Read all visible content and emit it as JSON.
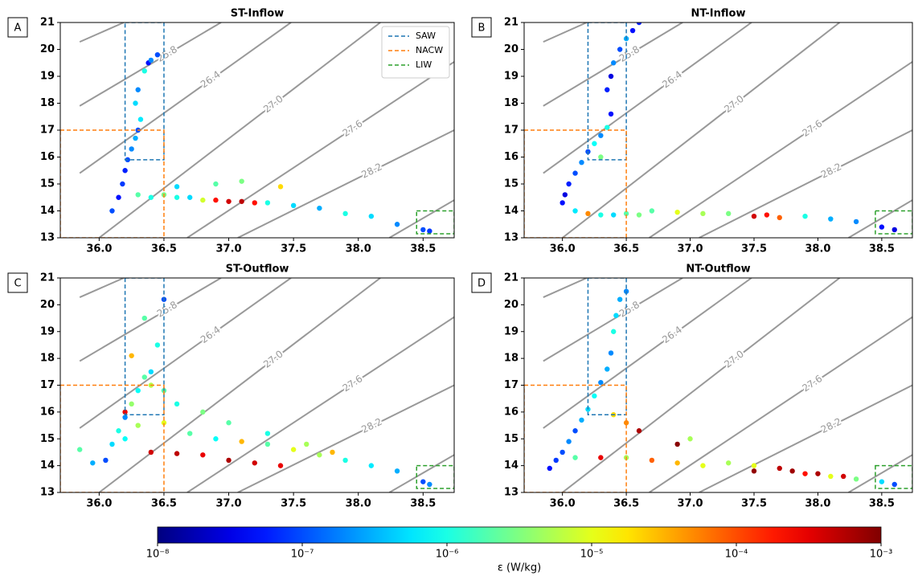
{
  "chart_data": [
    {
      "type": "scatter",
      "title": "ST-Inflow",
      "label": "A",
      "legend": "upper right",
      "xlim": [
        35.7,
        38.74
      ],
      "ylim": [
        13,
        21
      ],
      "xticks": [
        {
          "value": 36,
          "label": "36.0"
        },
        {
          "value": 36.5,
          "label": "36.5"
        },
        {
          "value": 37,
          "label": "37.0"
        },
        {
          "value": 37.5,
          "label": "37.5"
        },
        {
          "value": 38,
          "label": "38.0"
        },
        {
          "value": 38.5,
          "label": "38.5"
        }
      ],
      "yticks": [
        13,
        14,
        15,
        16,
        17,
        18,
        19,
        20,
        21
      ],
      "x": [
        36.1,
        36.15,
        36.18,
        36.2,
        36.22,
        36.25,
        36.28,
        36.3,
        36.32,
        36.28,
        36.3,
        36.35,
        36.38,
        36.4,
        36.45,
        36.3,
        36.4,
        36.5,
        36.6,
        36.7,
        36.8,
        36.9,
        37.0,
        37.1,
        37.2,
        37.3,
        37.5,
        37.7,
        37.9,
        38.1,
        38.3,
        38.5,
        38.55,
        36.9,
        37.1,
        37.4,
        36.6
      ],
      "y": [
        14.0,
        14.5,
        15.0,
        15.5,
        15.9,
        16.3,
        16.7,
        17.0,
        17.4,
        18.0,
        18.5,
        19.2,
        19.5,
        19.6,
        19.8,
        14.6,
        14.5,
        14.6,
        14.5,
        14.5,
        14.4,
        14.4,
        14.35,
        14.35,
        14.3,
        14.3,
        14.2,
        14.1,
        13.9,
        13.8,
        13.5,
        13.3,
        13.25,
        15.0,
        15.1,
        14.9,
        14.9
      ],
      "epsilon": [
        1e-07,
        5e-08,
        8e-08,
        6e-08,
        1e-07,
        2e-07,
        3e-07,
        1e-07,
        6e-07,
        5e-07,
        2e-07,
        1e-06,
        5e-08,
        2e-07,
        1e-07,
        2e-06,
        1e-06,
        3e-06,
        1e-06,
        5e-07,
        8e-06,
        0.0002,
        0.0004,
        0.0005,
        0.0002,
        1e-06,
        5e-07,
        3e-07,
        1e-06,
        5e-07,
        2e-07,
        1e-07,
        8e-08,
        2e-06,
        3e-06,
        2e-05,
        5e-07
      ]
    },
    {
      "type": "scatter",
      "title": "NT-Inflow",
      "label": "B",
      "xlim": [
        35.7,
        38.74
      ],
      "ylim": [
        13,
        21
      ],
      "xticks": [
        {
          "value": 36,
          "label": "36.0"
        },
        {
          "value": 36.5,
          "label": "36.5"
        },
        {
          "value": 37,
          "label": "37.0"
        },
        {
          "value": 37.5,
          "label": "37.5"
        },
        {
          "value": 38,
          "label": "38.0"
        },
        {
          "value": 38.5,
          "label": "38.5"
        }
      ],
      "yticks": [
        13,
        14,
        15,
        16,
        17,
        18,
        19,
        20,
        21
      ],
      "x": [
        36.0,
        36.02,
        36.05,
        36.1,
        36.15,
        36.2,
        36.25,
        36.3,
        36.35,
        36.38,
        36.35,
        36.38,
        36.4,
        36.45,
        36.5,
        36.55,
        36.6,
        36.1,
        36.2,
        36.3,
        36.4,
        36.5,
        36.6,
        36.7,
        36.9,
        37.1,
        37.3,
        37.5,
        37.6,
        37.7,
        37.9,
        38.1,
        38.3,
        38.5,
        38.6,
        36.3
      ],
      "y": [
        14.3,
        14.6,
        15.0,
        15.4,
        15.8,
        16.2,
        16.5,
        16.8,
        17.1,
        17.6,
        18.5,
        19.0,
        19.5,
        20.0,
        20.4,
        20.7,
        21.0,
        14.0,
        13.9,
        13.85,
        13.85,
        13.9,
        13.85,
        14.0,
        13.95,
        13.9,
        13.9,
        13.8,
        13.85,
        13.75,
        13.8,
        13.7,
        13.6,
        13.4,
        13.3,
        16.0
      ],
      "epsilon": [
        5e-08,
        3e-08,
        6e-08,
        1e-07,
        2e-07,
        1e-07,
        8e-07,
        2e-07,
        1e-06,
        5e-08,
        6e-08,
        3e-08,
        2e-07,
        1e-07,
        3e-07,
        5e-08,
        6e-08,
        6e-07,
        5e-05,
        1e-06,
        5e-07,
        2e-06,
        3e-06,
        2e-06,
        1e-05,
        5e-06,
        3e-06,
        0.0004,
        0.0002,
        8e-05,
        1e-06,
        3e-07,
        2e-07,
        5e-08,
        3e-08,
        3e-06
      ]
    },
    {
      "type": "scatter",
      "title": "ST-Outflow",
      "label": "C",
      "xlim": [
        35.7,
        38.74
      ],
      "ylim": [
        13,
        21
      ],
      "xticks": [
        {
          "value": 36,
          "label": "36.0"
        },
        {
          "value": 36.5,
          "label": "36.5"
        },
        {
          "value": 37,
          "label": "37.0"
        },
        {
          "value": 37.5,
          "label": "37.5"
        },
        {
          "value": 38,
          "label": "38.0"
        },
        {
          "value": 38.5,
          "label": "38.5"
        }
      ],
      "yticks": [
        13,
        14,
        15,
        16,
        17,
        18,
        19,
        20,
        21
      ],
      "x": [
        35.85,
        35.95,
        36.05,
        36.1,
        36.15,
        36.2,
        36.25,
        36.3,
        36.35,
        36.4,
        36.45,
        36.5,
        36.35,
        36.4,
        36.2,
        36.25,
        36.3,
        36.5,
        36.7,
        36.9,
        37.1,
        37.3,
        37.5,
        37.7,
        37.9,
        38.1,
        38.3,
        38.5,
        38.55,
        36.4,
        36.6,
        36.8,
        37.0,
        37.2,
        37.4,
        36.6,
        36.8,
        37.0,
        37.3,
        37.6,
        37.8,
        36.2,
        36.5
      ],
      "y": [
        14.6,
        14.1,
        14.2,
        14.8,
        15.3,
        15.8,
        16.3,
        16.8,
        17.3,
        17.5,
        18.5,
        20.2,
        19.5,
        17.0,
        15.0,
        18.1,
        15.5,
        15.6,
        15.2,
        15.0,
        14.9,
        14.8,
        14.6,
        14.4,
        14.2,
        14.0,
        13.8,
        13.4,
        13.3,
        14.5,
        14.45,
        14.4,
        14.2,
        14.1,
        14.0,
        16.3,
        16.0,
        15.6,
        15.2,
        14.8,
        14.5,
        16.0,
        16.8
      ],
      "epsilon": [
        2e-06,
        3e-07,
        1e-07,
        5e-07,
        1e-06,
        2e-07,
        4e-06,
        8e-07,
        2e-06,
        5e-07,
        1e-06,
        1e-07,
        2e-06,
        6e-06,
        8e-07,
        3e-05,
        5e-06,
        1e-05,
        2e-06,
        8e-07,
        3e-05,
        2e-06,
        1e-05,
        5e-06,
        1e-06,
        6e-07,
        3e-07,
        1e-07,
        2e-07,
        0.0004,
        0.0005,
        0.0003,
        0.0006,
        0.0004,
        0.0003,
        1e-06,
        3e-06,
        2e-06,
        1e-06,
        5e-06,
        3e-05,
        0.0003,
        2e-06
      ]
    },
    {
      "type": "scatter",
      "title": "NT-Outflow",
      "label": "D",
      "xlim": [
        35.7,
        38.74
      ],
      "ylim": [
        13,
        21
      ],
      "xticks": [
        {
          "value": 36,
          "label": "36.0"
        },
        {
          "value": 36.5,
          "label": "36.5"
        },
        {
          "value": 37,
          "label": "37.0"
        },
        {
          "value": 37.5,
          "label": "37.5"
        },
        {
          "value": 38,
          "label": "38.0"
        },
        {
          "value": 38.5,
          "label": "38.5"
        }
      ],
      "yticks": [
        13,
        14,
        15,
        16,
        17,
        18,
        19,
        20,
        21
      ],
      "x": [
        35.9,
        35.95,
        36.0,
        36.05,
        36.1,
        36.15,
        36.2,
        36.25,
        36.3,
        36.35,
        36.38,
        36.4,
        36.42,
        36.45,
        36.5,
        36.1,
        36.3,
        36.5,
        36.7,
        36.9,
        37.1,
        37.3,
        37.5,
        37.7,
        37.9,
        38.1,
        38.3,
        38.5,
        38.6,
        36.5,
        36.6,
        36.4,
        36.9,
        37.0,
        37.5,
        37.8,
        38.0,
        38.2
      ],
      "y": [
        13.9,
        14.2,
        14.5,
        14.9,
        15.3,
        15.7,
        16.1,
        16.6,
        17.1,
        17.6,
        18.2,
        19.0,
        19.6,
        20.2,
        20.5,
        14.3,
        14.3,
        14.3,
        14.2,
        14.1,
        14.0,
        14.1,
        14.0,
        13.9,
        13.7,
        13.6,
        13.5,
        13.4,
        13.3,
        15.6,
        15.3,
        15.9,
        14.8,
        15.0,
        13.8,
        13.8,
        13.7,
        13.6
      ],
      "epsilon": [
        5e-08,
        8e-08,
        1e-07,
        2e-07,
        1e-07,
        3e-07,
        5e-07,
        8e-07,
        2e-07,
        3e-07,
        2e-07,
        1e-06,
        5e-07,
        3e-07,
        2e-07,
        2e-06,
        0.0003,
        5e-06,
        8e-05,
        3e-05,
        1e-05,
        5e-06,
        1e-05,
        0.0005,
        0.0002,
        1e-05,
        3e-06,
        5e-07,
        1e-07,
        5e-05,
        0.0006,
        2e-05,
        0.0009,
        5e-06,
        0.0008,
        0.0007,
        0.0006,
        0.0004
      ]
    }
  ],
  "isopycnals": [
    {
      "x": [
        35.85,
        36.19
      ],
      "y": [
        20.28,
        21
      ]
    },
    {
      "label": "25.8",
      "x": [
        35.85,
        36.94
      ],
      "y": [
        17.9,
        21
      ]
    },
    {
      "label": "26.4",
      "x": [
        35.85,
        37.48
      ],
      "y": [
        15.4,
        21
      ]
    },
    {
      "label": "27.0",
      "x": [
        36.0,
        38.17
      ],
      "y": [
        13,
        21
      ]
    },
    {
      "label": "27.6",
      "x": [
        36.68,
        38.74
      ],
      "y": [
        13,
        19.54
      ]
    },
    {
      "label": "28.2",
      "x": [
        37.07,
        38.74
      ],
      "y": [
        13,
        17.0
      ]
    },
    {
      "x": [
        38.24,
        38.74
      ],
      "y": [
        13,
        14.4
      ]
    }
  ],
  "water_masses": [
    {
      "name": "SAW",
      "color": "#1f77b4",
      "x": [
        36.2,
        36.5
      ],
      "y": [
        15.9,
        21
      ]
    },
    {
      "name": "NACW",
      "color": "#ff7f0e",
      "x": [
        35.7,
        36.5
      ],
      "y": [
        13,
        17
      ]
    },
    {
      "name": "LIW",
      "color": "#2ca02c",
      "x": [
        38.45,
        38.74
      ],
      "y": [
        13.15,
        14
      ]
    }
  ],
  "colorbar": {
    "label": "ε (W/kg)",
    "log": true,
    "colormap": "jet",
    "lim": [
      1e-08,
      0.001
    ],
    "ticks": [
      {
        "value": 1e-08,
        "label": "10⁻⁸"
      },
      {
        "value": 1e-07,
        "label": "10⁻⁷"
      },
      {
        "value": 1e-06,
        "label": "10⁻⁶"
      },
      {
        "value": 1e-05,
        "label": "10⁻⁵"
      },
      {
        "value": 0.0001,
        "label": "10⁻⁴"
      },
      {
        "value": 0.001,
        "label": "10⁻³"
      }
    ]
  }
}
